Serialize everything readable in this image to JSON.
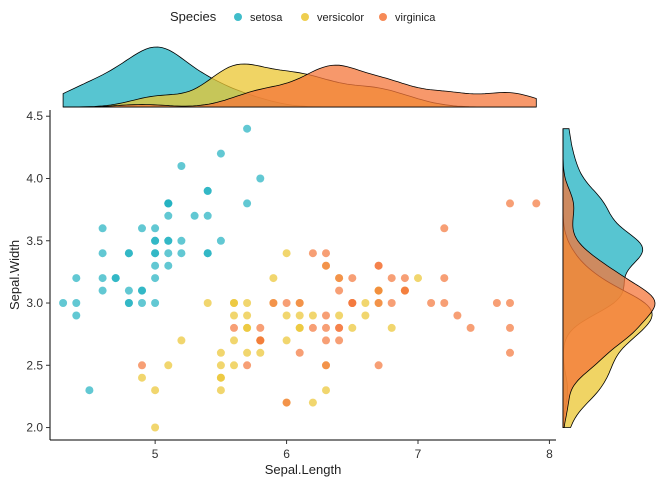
{
  "chart_data": {
    "type": "scatter",
    "title": "",
    "xlabel": "Sepal.Length",
    "ylabel": "Sepal.Width",
    "xlim": [
      4.2,
      8.05
    ],
    "ylim": [
      1.9,
      4.55
    ],
    "x_ticks": [
      "5",
      "6",
      "7",
      "8"
    ],
    "y_ticks": [
      "2.0",
      "2.5",
      "3.0",
      "3.5",
      "4.0",
      "4.5"
    ],
    "legend": {
      "title": "Species",
      "position": "top"
    },
    "marginal": {
      "top": "density of Sepal.Length",
      "right": "density of Sepal.Width"
    },
    "series": [
      {
        "name": "setosa",
        "color": "#1FB1C1",
        "points": [
          [
            5.1,
            3.5
          ],
          [
            4.9,
            3.0
          ],
          [
            4.7,
            3.2
          ],
          [
            4.6,
            3.1
          ],
          [
            5.0,
            3.6
          ],
          [
            5.4,
            3.9
          ],
          [
            4.6,
            3.4
          ],
          [
            5.0,
            3.4
          ],
          [
            4.4,
            2.9
          ],
          [
            4.9,
            3.1
          ],
          [
            5.4,
            3.7
          ],
          [
            4.8,
            3.4
          ],
          [
            4.8,
            3.0
          ],
          [
            4.3,
            3.0
          ],
          [
            5.8,
            4.0
          ],
          [
            5.7,
            4.4
          ],
          [
            5.4,
            3.9
          ],
          [
            5.1,
            3.5
          ],
          [
            5.7,
            3.8
          ],
          [
            5.1,
            3.8
          ],
          [
            5.4,
            3.4
          ],
          [
            5.1,
            3.7
          ],
          [
            4.6,
            3.6
          ],
          [
            5.1,
            3.3
          ],
          [
            4.8,
            3.4
          ],
          [
            5.0,
            3.0
          ],
          [
            5.0,
            3.4
          ],
          [
            5.2,
            3.5
          ],
          [
            5.2,
            3.4
          ],
          [
            4.7,
            3.2
          ],
          [
            4.8,
            3.1
          ],
          [
            5.4,
            3.4
          ],
          [
            5.2,
            4.1
          ],
          [
            5.5,
            4.2
          ],
          [
            4.9,
            3.1
          ],
          [
            5.0,
            3.2
          ],
          [
            5.5,
            3.5
          ],
          [
            4.9,
            3.6
          ],
          [
            4.4,
            3.0
          ],
          [
            5.1,
            3.4
          ],
          [
            5.0,
            3.5
          ],
          [
            4.5,
            2.3
          ],
          [
            4.4,
            3.2
          ],
          [
            5.0,
            3.5
          ],
          [
            5.1,
            3.8
          ],
          [
            4.8,
            3.0
          ],
          [
            5.1,
            3.8
          ],
          [
            4.6,
            3.2
          ],
          [
            5.3,
            3.7
          ],
          [
            5.0,
            3.3
          ]
        ]
      },
      {
        "name": "versicolor",
        "color": "#EBC530",
        "points": [
          [
            7.0,
            3.2
          ],
          [
            6.4,
            3.2
          ],
          [
            6.9,
            3.1
          ],
          [
            5.5,
            2.3
          ],
          [
            6.5,
            2.8
          ],
          [
            5.7,
            2.8
          ],
          [
            6.3,
            3.3
          ],
          [
            4.9,
            2.4
          ],
          [
            6.6,
            2.9
          ],
          [
            5.2,
            2.7
          ],
          [
            5.0,
            2.0
          ],
          [
            5.9,
            3.0
          ],
          [
            6.0,
            2.2
          ],
          [
            6.1,
            2.9
          ],
          [
            5.6,
            2.9
          ],
          [
            6.7,
            3.1
          ],
          [
            5.6,
            3.0
          ],
          [
            5.8,
            2.7
          ],
          [
            6.2,
            2.2
          ],
          [
            5.6,
            2.5
          ],
          [
            5.9,
            3.2
          ],
          [
            6.1,
            2.8
          ],
          [
            6.3,
            2.5
          ],
          [
            6.1,
            2.8
          ],
          [
            6.4,
            2.9
          ],
          [
            6.6,
            3.0
          ],
          [
            6.8,
            2.8
          ],
          [
            6.7,
            3.0
          ],
          [
            6.0,
            2.9
          ],
          [
            5.7,
            2.6
          ],
          [
            5.5,
            2.4
          ],
          [
            5.5,
            2.4
          ],
          [
            5.8,
            2.7
          ],
          [
            6.0,
            2.7
          ],
          [
            5.4,
            3.0
          ],
          [
            6.0,
            3.4
          ],
          [
            6.7,
            3.1
          ],
          [
            6.3,
            2.3
          ],
          [
            5.6,
            3.0
          ],
          [
            5.5,
            2.5
          ],
          [
            5.5,
            2.6
          ],
          [
            6.1,
            3.0
          ],
          [
            5.8,
            2.6
          ],
          [
            5.0,
            2.3
          ],
          [
            5.6,
            2.7
          ],
          [
            5.7,
            3.0
          ],
          [
            5.7,
            2.9
          ],
          [
            6.2,
            2.9
          ],
          [
            5.1,
            2.5
          ],
          [
            5.7,
            2.8
          ]
        ]
      },
      {
        "name": "virginica",
        "color": "#F4763A",
        "points": [
          [
            6.3,
            3.3
          ],
          [
            5.8,
            2.7
          ],
          [
            7.1,
            3.0
          ],
          [
            6.3,
            2.9
          ],
          [
            6.5,
            3.0
          ],
          [
            7.6,
            3.0
          ],
          [
            4.9,
            2.5
          ],
          [
            7.3,
            2.9
          ],
          [
            6.7,
            2.5
          ],
          [
            7.2,
            3.6
          ],
          [
            6.5,
            3.2
          ],
          [
            6.4,
            2.7
          ],
          [
            6.8,
            3.0
          ],
          [
            5.7,
            2.5
          ],
          [
            5.8,
            2.8
          ],
          [
            6.4,
            3.2
          ],
          [
            6.5,
            3.0
          ],
          [
            7.7,
            3.8
          ],
          [
            7.7,
            2.6
          ],
          [
            6.0,
            2.2
          ],
          [
            6.9,
            3.2
          ],
          [
            5.6,
            2.8
          ],
          [
            7.7,
            2.8
          ],
          [
            6.3,
            2.7
          ],
          [
            6.7,
            3.3
          ],
          [
            7.2,
            3.2
          ],
          [
            6.2,
            2.8
          ],
          [
            6.1,
            3.0
          ],
          [
            6.4,
            2.8
          ],
          [
            7.2,
            3.0
          ],
          [
            7.4,
            2.8
          ],
          [
            7.9,
            3.8
          ],
          [
            6.4,
            2.8
          ],
          [
            6.3,
            2.8
          ],
          [
            6.1,
            2.6
          ],
          [
            7.7,
            3.0
          ],
          [
            6.3,
            3.4
          ],
          [
            6.4,
            3.1
          ],
          [
            6.0,
            3.0
          ],
          [
            6.9,
            3.1
          ],
          [
            6.7,
            3.1
          ],
          [
            6.9,
            3.1
          ],
          [
            5.8,
            2.7
          ],
          [
            6.8,
            3.2
          ],
          [
            6.7,
            3.3
          ],
          [
            6.7,
            3.0
          ],
          [
            6.3,
            2.5
          ],
          [
            6.5,
            3.0
          ],
          [
            6.2,
            3.4
          ],
          [
            5.9,
            3.0
          ]
        ]
      }
    ]
  }
}
